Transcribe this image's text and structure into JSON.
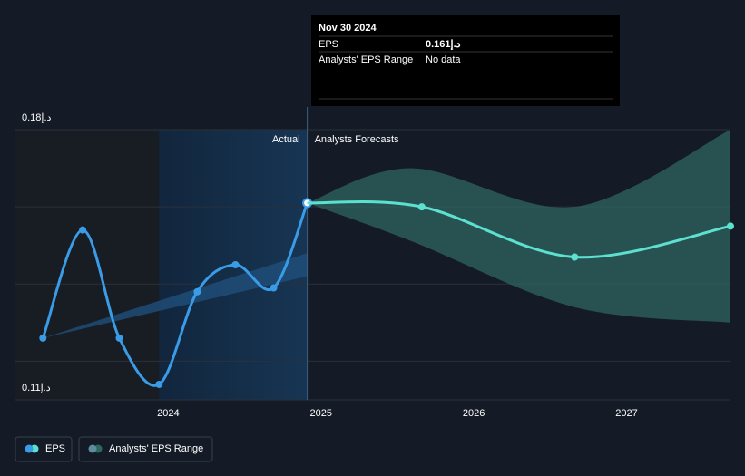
{
  "chart_data": {
    "type": "line",
    "xlim": [
      2023.0,
      2027.68
    ],
    "xticks": [
      2024,
      2025,
      2026,
      2027
    ],
    "ylim": [
      0.11,
      0.18
    ],
    "yticks": [
      {
        "value": 0.18,
        "label": "0.18د.إ"
      },
      {
        "value": 0.11,
        "label": "0.11د.إ"
      }
    ],
    "gridlines": [
      0.18,
      0.16,
      0.14,
      0.12
    ],
    "section_labels": [
      "Actual",
      "Analysts Forecasts"
    ],
    "series": [
      {
        "name": "EPS",
        "color": "#3a9be6",
        "x": [
          2023.18,
          2023.44,
          2023.68,
          2023.94,
          2024.19,
          2024.44,
          2024.69,
          2024.91
        ],
        "values": [
          0.126,
          0.154,
          0.126,
          0.114,
          0.138,
          0.145,
          0.139,
          0.161
        ]
      },
      {
        "name": "Analysts' EPS Range",
        "color": "#5ce1d0",
        "x": [
          2024.91,
          2025.66,
          2026.66,
          2027.68
        ],
        "values": [
          0.161,
          0.16,
          0.147,
          0.155
        ],
        "range_x": [
          2024.91,
          2025.6,
          2026.66,
          2027.68
        ],
        "range_high": [
          0.161,
          0.17,
          0.16,
          0.18
        ],
        "range_low": [
          0.161,
          0.151,
          0.134,
          0.13
        ]
      }
    ],
    "tooltip": {
      "date": "Nov 30 2024",
      "rows": [
        {
          "label": "EPS",
          "value": 0.161,
          "value_label": "0.161د.إ"
        },
        {
          "label": "Analysts' EPS Range",
          "value_label": "No data"
        }
      ]
    }
  }
}
